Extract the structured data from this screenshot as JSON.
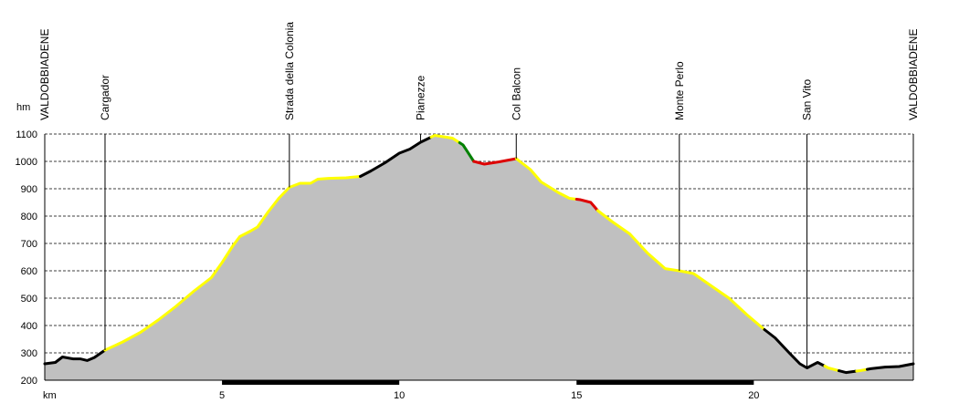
{
  "chart_data": {
    "type": "area",
    "title": "",
    "xlabel": "km",
    "ylabel": "hm",
    "xlim": [
      0,
      24.5
    ],
    "ylim": [
      200,
      1100
    ],
    "x_ticks": [
      5,
      10,
      15,
      20
    ],
    "y_ticks": [
      200,
      300,
      400,
      500,
      600,
      700,
      800,
      900,
      1000,
      1100
    ],
    "grid": true,
    "colors": {
      "fill": "#c0c0c0",
      "default_line": "#000000",
      "yellow": "#ffff00",
      "red": "#dd0000",
      "green": "#008000",
      "scale_bar": "#000000"
    },
    "waypoints": [
      {
        "name": "VALDOBBIADENE",
        "km": 0
      },
      {
        "name": "Cargador",
        "km": 1.7
      },
      {
        "name": "Strada della Colonia",
        "km": 6.9
      },
      {
        "name": "Pianezze",
        "km": 10.6
      },
      {
        "name": "Col Balcon",
        "km": 13.3
      },
      {
        "name": "Monte Perlo",
        "km": 17.9
      },
      {
        "name": "San Vito",
        "km": 21.5
      },
      {
        "name": "VALDOBBIADENE",
        "km": 24.5
      }
    ],
    "profile": [
      [
        0,
        260
      ],
      [
        0.3,
        265
      ],
      [
        0.5,
        285
      ],
      [
        0.8,
        278
      ],
      [
        1.0,
        278
      ],
      [
        1.2,
        272
      ],
      [
        1.4,
        283
      ],
      [
        1.7,
        310
      ],
      [
        2.2,
        340
      ],
      [
        2.7,
        375
      ],
      [
        3.2,
        420
      ],
      [
        3.7,
        470
      ],
      [
        4.2,
        525
      ],
      [
        4.7,
        575
      ],
      [
        5.0,
        630
      ],
      [
        5.3,
        690
      ],
      [
        5.5,
        725
      ],
      [
        5.8,
        745
      ],
      [
        6.0,
        760
      ],
      [
        6.3,
        815
      ],
      [
        6.6,
        865
      ],
      [
        6.9,
        905
      ],
      [
        7.2,
        920
      ],
      [
        7.5,
        920
      ],
      [
        7.7,
        935
      ],
      [
        8.0,
        938
      ],
      [
        8.5,
        940
      ],
      [
        8.9,
        945
      ],
      [
        9.2,
        965
      ],
      [
        9.6,
        995
      ],
      [
        10.0,
        1030
      ],
      [
        10.3,
        1045
      ],
      [
        10.6,
        1070
      ],
      [
        11.0,
        1095
      ],
      [
        11.5,
        1085
      ],
      [
        11.8,
        1060
      ],
      [
        12.1,
        1000
      ],
      [
        12.4,
        990
      ],
      [
        12.8,
        998
      ],
      [
        13.3,
        1010
      ],
      [
        13.7,
        970
      ],
      [
        14.0,
        925
      ],
      [
        14.5,
        885
      ],
      [
        14.8,
        865
      ],
      [
        15.1,
        860
      ],
      [
        15.4,
        850
      ],
      [
        15.6,
        820
      ],
      [
        16.0,
        780
      ],
      [
        16.5,
        735
      ],
      [
        17.0,
        665
      ],
      [
        17.5,
        608
      ],
      [
        17.9,
        600
      ],
      [
        18.3,
        590
      ],
      [
        18.8,
        545
      ],
      [
        19.3,
        500
      ],
      [
        19.8,
        440
      ],
      [
        20.3,
        385
      ],
      [
        20.6,
        355
      ],
      [
        21.0,
        300
      ],
      [
        21.3,
        260
      ],
      [
        21.5,
        245
      ],
      [
        21.8,
        265
      ],
      [
        22.1,
        245
      ],
      [
        22.6,
        228
      ],
      [
        23.0,
        235
      ],
      [
        23.3,
        242
      ],
      [
        23.7,
        248
      ],
      [
        24.1,
        250
      ],
      [
        24.5,
        260
      ]
    ],
    "segments": [
      {
        "from": 0,
        "to": 1.7,
        "color": "black"
      },
      {
        "from": 1.7,
        "to": 8.9,
        "color": "yellow"
      },
      {
        "from": 8.9,
        "to": 10.9,
        "color": "black"
      },
      {
        "from": 10.9,
        "to": 11.7,
        "color": "yellow"
      },
      {
        "from": 11.7,
        "to": 12.1,
        "color": "green"
      },
      {
        "from": 12.1,
        "to": 13.3,
        "color": "red"
      },
      {
        "from": 13.3,
        "to": 15.0,
        "color": "yellow"
      },
      {
        "from": 15.0,
        "to": 15.6,
        "color": "red"
      },
      {
        "from": 15.6,
        "to": 20.3,
        "color": "yellow"
      },
      {
        "from": 20.3,
        "to": 22.0,
        "color": "black"
      },
      {
        "from": 22.0,
        "to": 22.4,
        "color": "yellow"
      },
      {
        "from": 22.4,
        "to": 22.9,
        "color": "black"
      },
      {
        "from": 22.9,
        "to": 23.2,
        "color": "yellow"
      },
      {
        "from": 23.2,
        "to": 24.5,
        "color": "black"
      }
    ],
    "scale_bars": [
      [
        5,
        10
      ],
      [
        15,
        20
      ]
    ]
  }
}
